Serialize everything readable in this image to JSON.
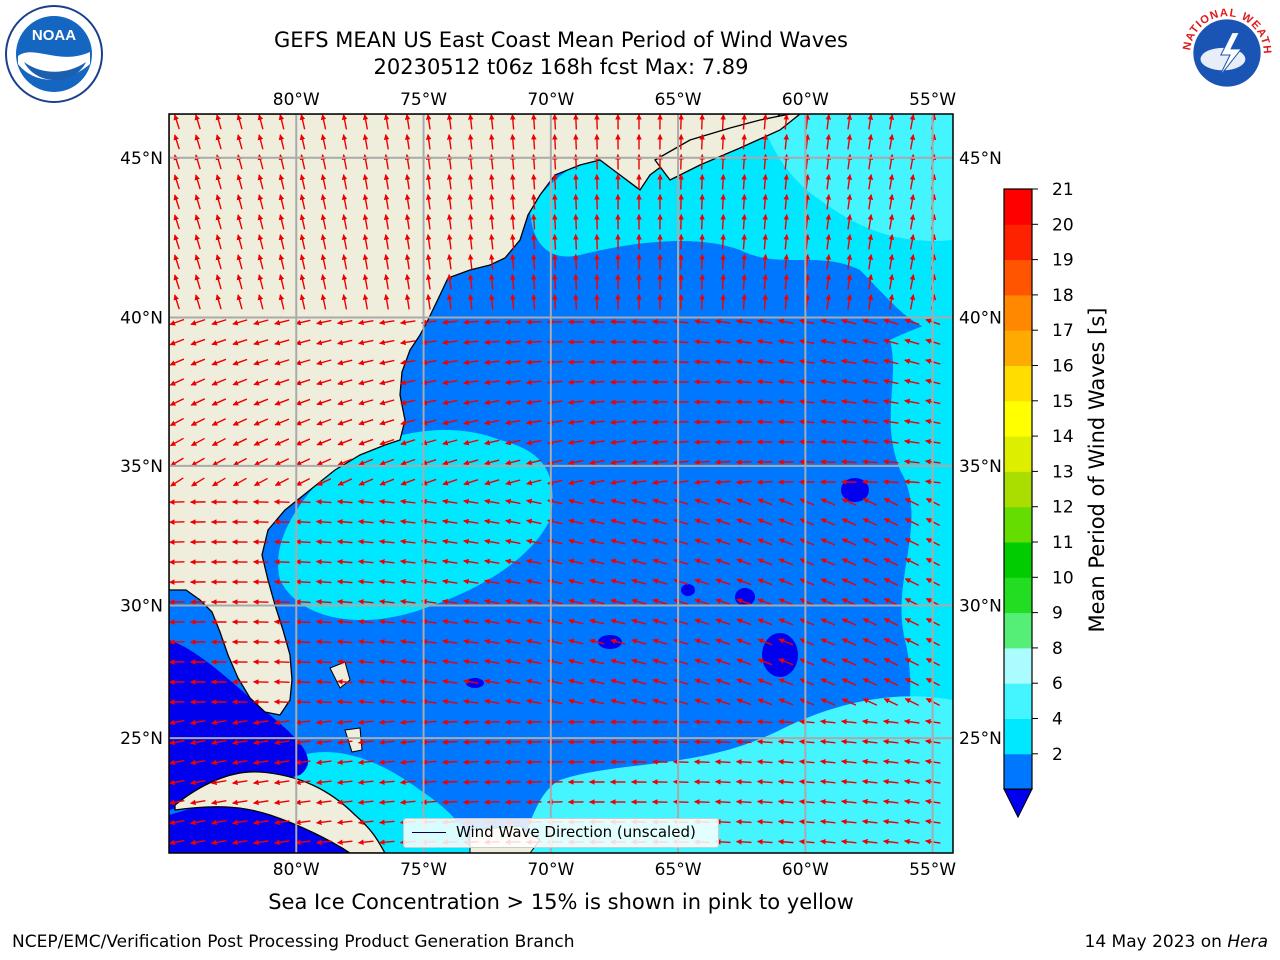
{
  "title": {
    "line1": "GEFS MEAN US East Coast Mean Period of Wind Waves",
    "line2": "20230512 t06z 168h fcst   Max: 7.89"
  },
  "logos": {
    "left": {
      "icon": "noaa-logo",
      "text": "NOAA"
    },
    "right": {
      "icon": "nws-logo",
      "text": "NATIONAL WEATHER SERVICE"
    }
  },
  "map": {
    "lon_ticks": [
      "80°W",
      "75°W",
      "70°W",
      "65°W",
      "60°W",
      "55°W"
    ],
    "lat_ticks": [
      "45°N",
      "40°N",
      "35°N",
      "30°N",
      "25°N"
    ],
    "lon_values": [
      -80,
      -75,
      -70,
      -65,
      -60,
      -55
    ],
    "lat_values": [
      45,
      40,
      35,
      30,
      25
    ],
    "extent": {
      "lon": [
        -85,
        -54.2
      ],
      "lat": [
        20.5,
        46.3
      ]
    },
    "gridlines": true
  },
  "legend": {
    "label": "Wind Wave Direction (unscaled)"
  },
  "colorbar": {
    "title": "Mean Period of Wind Waves [s]",
    "ticks": [
      "21",
      "20",
      "19",
      "18",
      "17",
      "16",
      "15",
      "14",
      "13",
      "12",
      "11",
      "10",
      "9",
      "8",
      "6",
      "4",
      "2"
    ],
    "colors": [
      "#0000ee",
      "#0077ff",
      "#00e8ff",
      "#44f4ff",
      "#aafcff",
      "#55ee77",
      "#22dd22",
      "#00cc00",
      "#66dd00",
      "#aadd00",
      "#ddee00",
      "#ffff00",
      "#ffdd00",
      "#ffaa00",
      "#ff8800",
      "#ff5500",
      "#ff2200",
      "#ff0000"
    ],
    "extend_color": "#0000ee"
  },
  "footer": {
    "note": "Sea Ice Concentration > 15% is shown in pink to yellow",
    "left": "NCEP/EMC/Verification Post Processing Product Generation Branch",
    "date": "14 May 2023 on ",
    "machine": "Hera"
  },
  "colors": {
    "land": "#efeedd",
    "ocean_mid": "#0077ff",
    "ocean_short": "#00e8ff",
    "ocean_light": "#44f4ff",
    "ocean_deep": "#0000ee",
    "arrows": "#ee0000",
    "grid": "#aaaaaa"
  }
}
